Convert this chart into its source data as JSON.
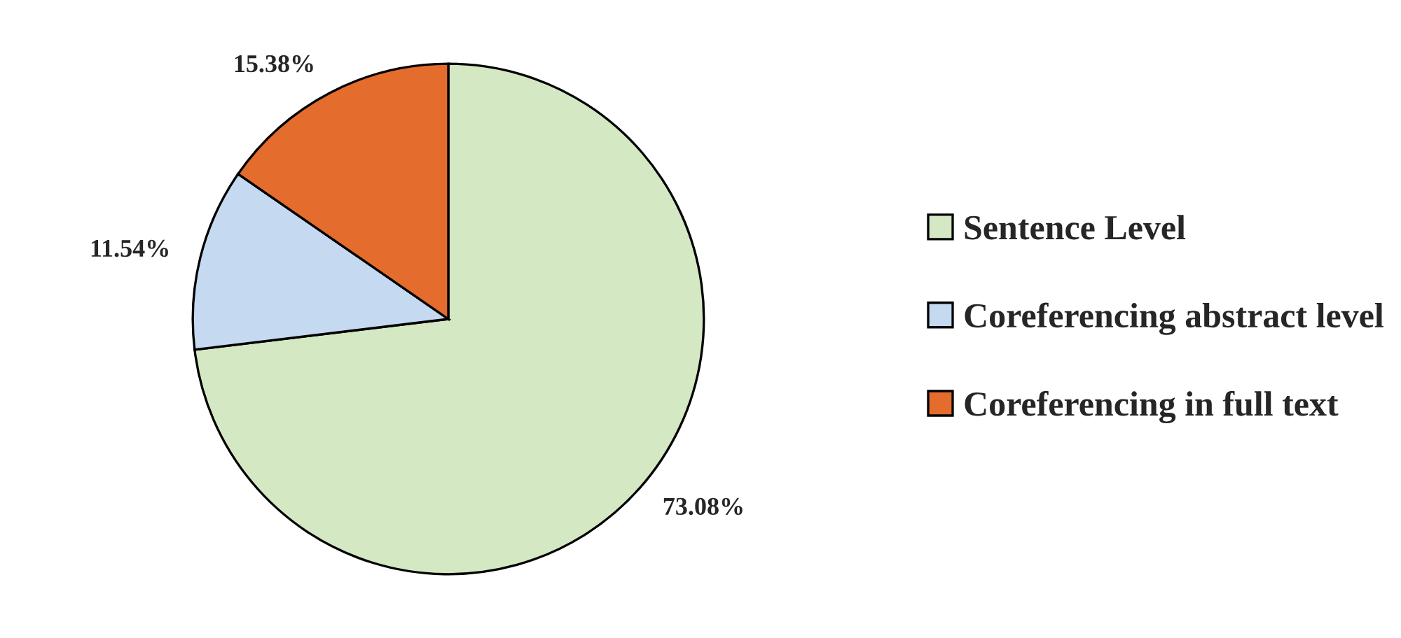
{
  "chart_data": {
    "type": "pie",
    "categories": [
      "Sentence Level",
      "Coreferencing abstract level",
      "Coreferencing in full text"
    ],
    "values": [
      73.08,
      11.54,
      15.38
    ],
    "colors": [
      "#d4e8c4",
      "#c5d9f1",
      "#e46c2c"
    ],
    "value_labels": [
      "73.08%",
      "11.54%",
      "15.38%"
    ],
    "legend": "right"
  }
}
